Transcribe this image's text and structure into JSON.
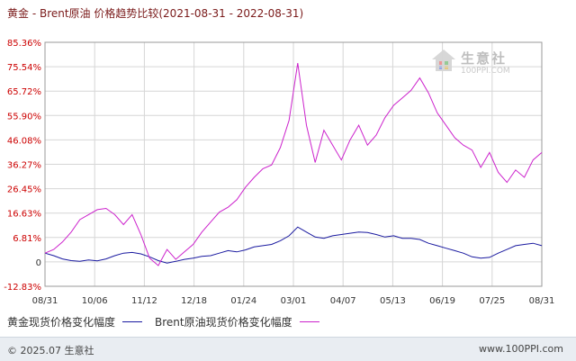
{
  "title": "黄金 - Brent原油 价格趋势比较(2021-08-31 - 2022-08-31)",
  "watermark": {
    "name": "生意社",
    "sub": "100PPI.COM"
  },
  "legend": {
    "gold_label": "黄金现货价格变化幅度",
    "brent_label": "Brent原油现货价格变化幅度"
  },
  "footer": {
    "left": "© 2025.07 生意社",
    "right": "www.100PPI.com"
  },
  "colors": {
    "gold": "#1a1aa0",
    "brent": "#cc22cc",
    "tick_label": "#cc0000",
    "grid": "#d6d6d6"
  },
  "chart_data": {
    "type": "line",
    "title": "黄金 - Brent原油 价格趋势比较(2021-08-31 - 2022-08-31)",
    "ylabel": "",
    "xlabel": "",
    "y_ticks": [
      "85.36%",
      "75.54%",
      "65.72%",
      "55.90%",
      "46.08%",
      "36.27%",
      "26.45%",
      "16.63%",
      "6.81%",
      "0",
      "-12.83%"
    ],
    "y_tick_values": [
      85.36,
      75.54,
      65.72,
      55.9,
      46.08,
      36.27,
      26.45,
      16.63,
      6.81,
      0,
      -12.83
    ],
    "ylim": [
      -12.83,
      85.36
    ],
    "x_ticks": [
      "08/31",
      "10/06",
      "11/12",
      "12/18",
      "01/24",
      "03/01",
      "04/07",
      "05/13",
      "06/19",
      "07/25",
      "08/31"
    ],
    "grid": true,
    "series": [
      {
        "name": "黄金现货价格变化幅度",
        "values": [
          0.5,
          -0.5,
          -1.8,
          -2.5,
          -2.8,
          -2.2,
          -2.6,
          -1.8,
          -0.5,
          0.5,
          0.8,
          0.2,
          -1.0,
          -2.5,
          -3.5,
          -2.8,
          -2.0,
          -1.5,
          -0.8,
          -0.5,
          0.5,
          1.5,
          1.0,
          1.8,
          3.0,
          3.5,
          4.0,
          5.5,
          7.5,
          11.0,
          9.0,
          7.0,
          6.5,
          7.5,
          8.0,
          8.5,
          9.0,
          8.8,
          8.0,
          7.0,
          7.5,
          6.5,
          6.5,
          6.0,
          4.5,
          3.5,
          2.5,
          1.5,
          0.5,
          -1.0,
          -1.5,
          -1.2,
          0.5,
          2.0,
          3.5,
          4.0,
          4.5,
          3.5
        ]
      },
      {
        "name": "Brent原油现货价格变化幅度",
        "values": [
          0.5,
          2.0,
          5.0,
          9.0,
          14.0,
          16.0,
          18.0,
          18.5,
          16.0,
          12.0,
          16.0,
          8.0,
          -1.5,
          -4.5,
          2.0,
          -2.0,
          1.0,
          4.0,
          9.0,
          13.0,
          17.0,
          19.0,
          22.0,
          27.0,
          31.0,
          34.5,
          36.0,
          43.0,
          54.0,
          77.0,
          52.0,
          37.0,
          50.0,
          44.0,
          38.0,
          46.0,
          52.0,
          44.0,
          48.0,
          55.0,
          60.0,
          63.0,
          66.0,
          71.0,
          65.0,
          57.0,
          52.0,
          47.0,
          44.0,
          42.0,
          35.0,
          41.0,
          33.0,
          29.0,
          34.0,
          31.0,
          38.0,
          41.0
        ]
      }
    ]
  }
}
